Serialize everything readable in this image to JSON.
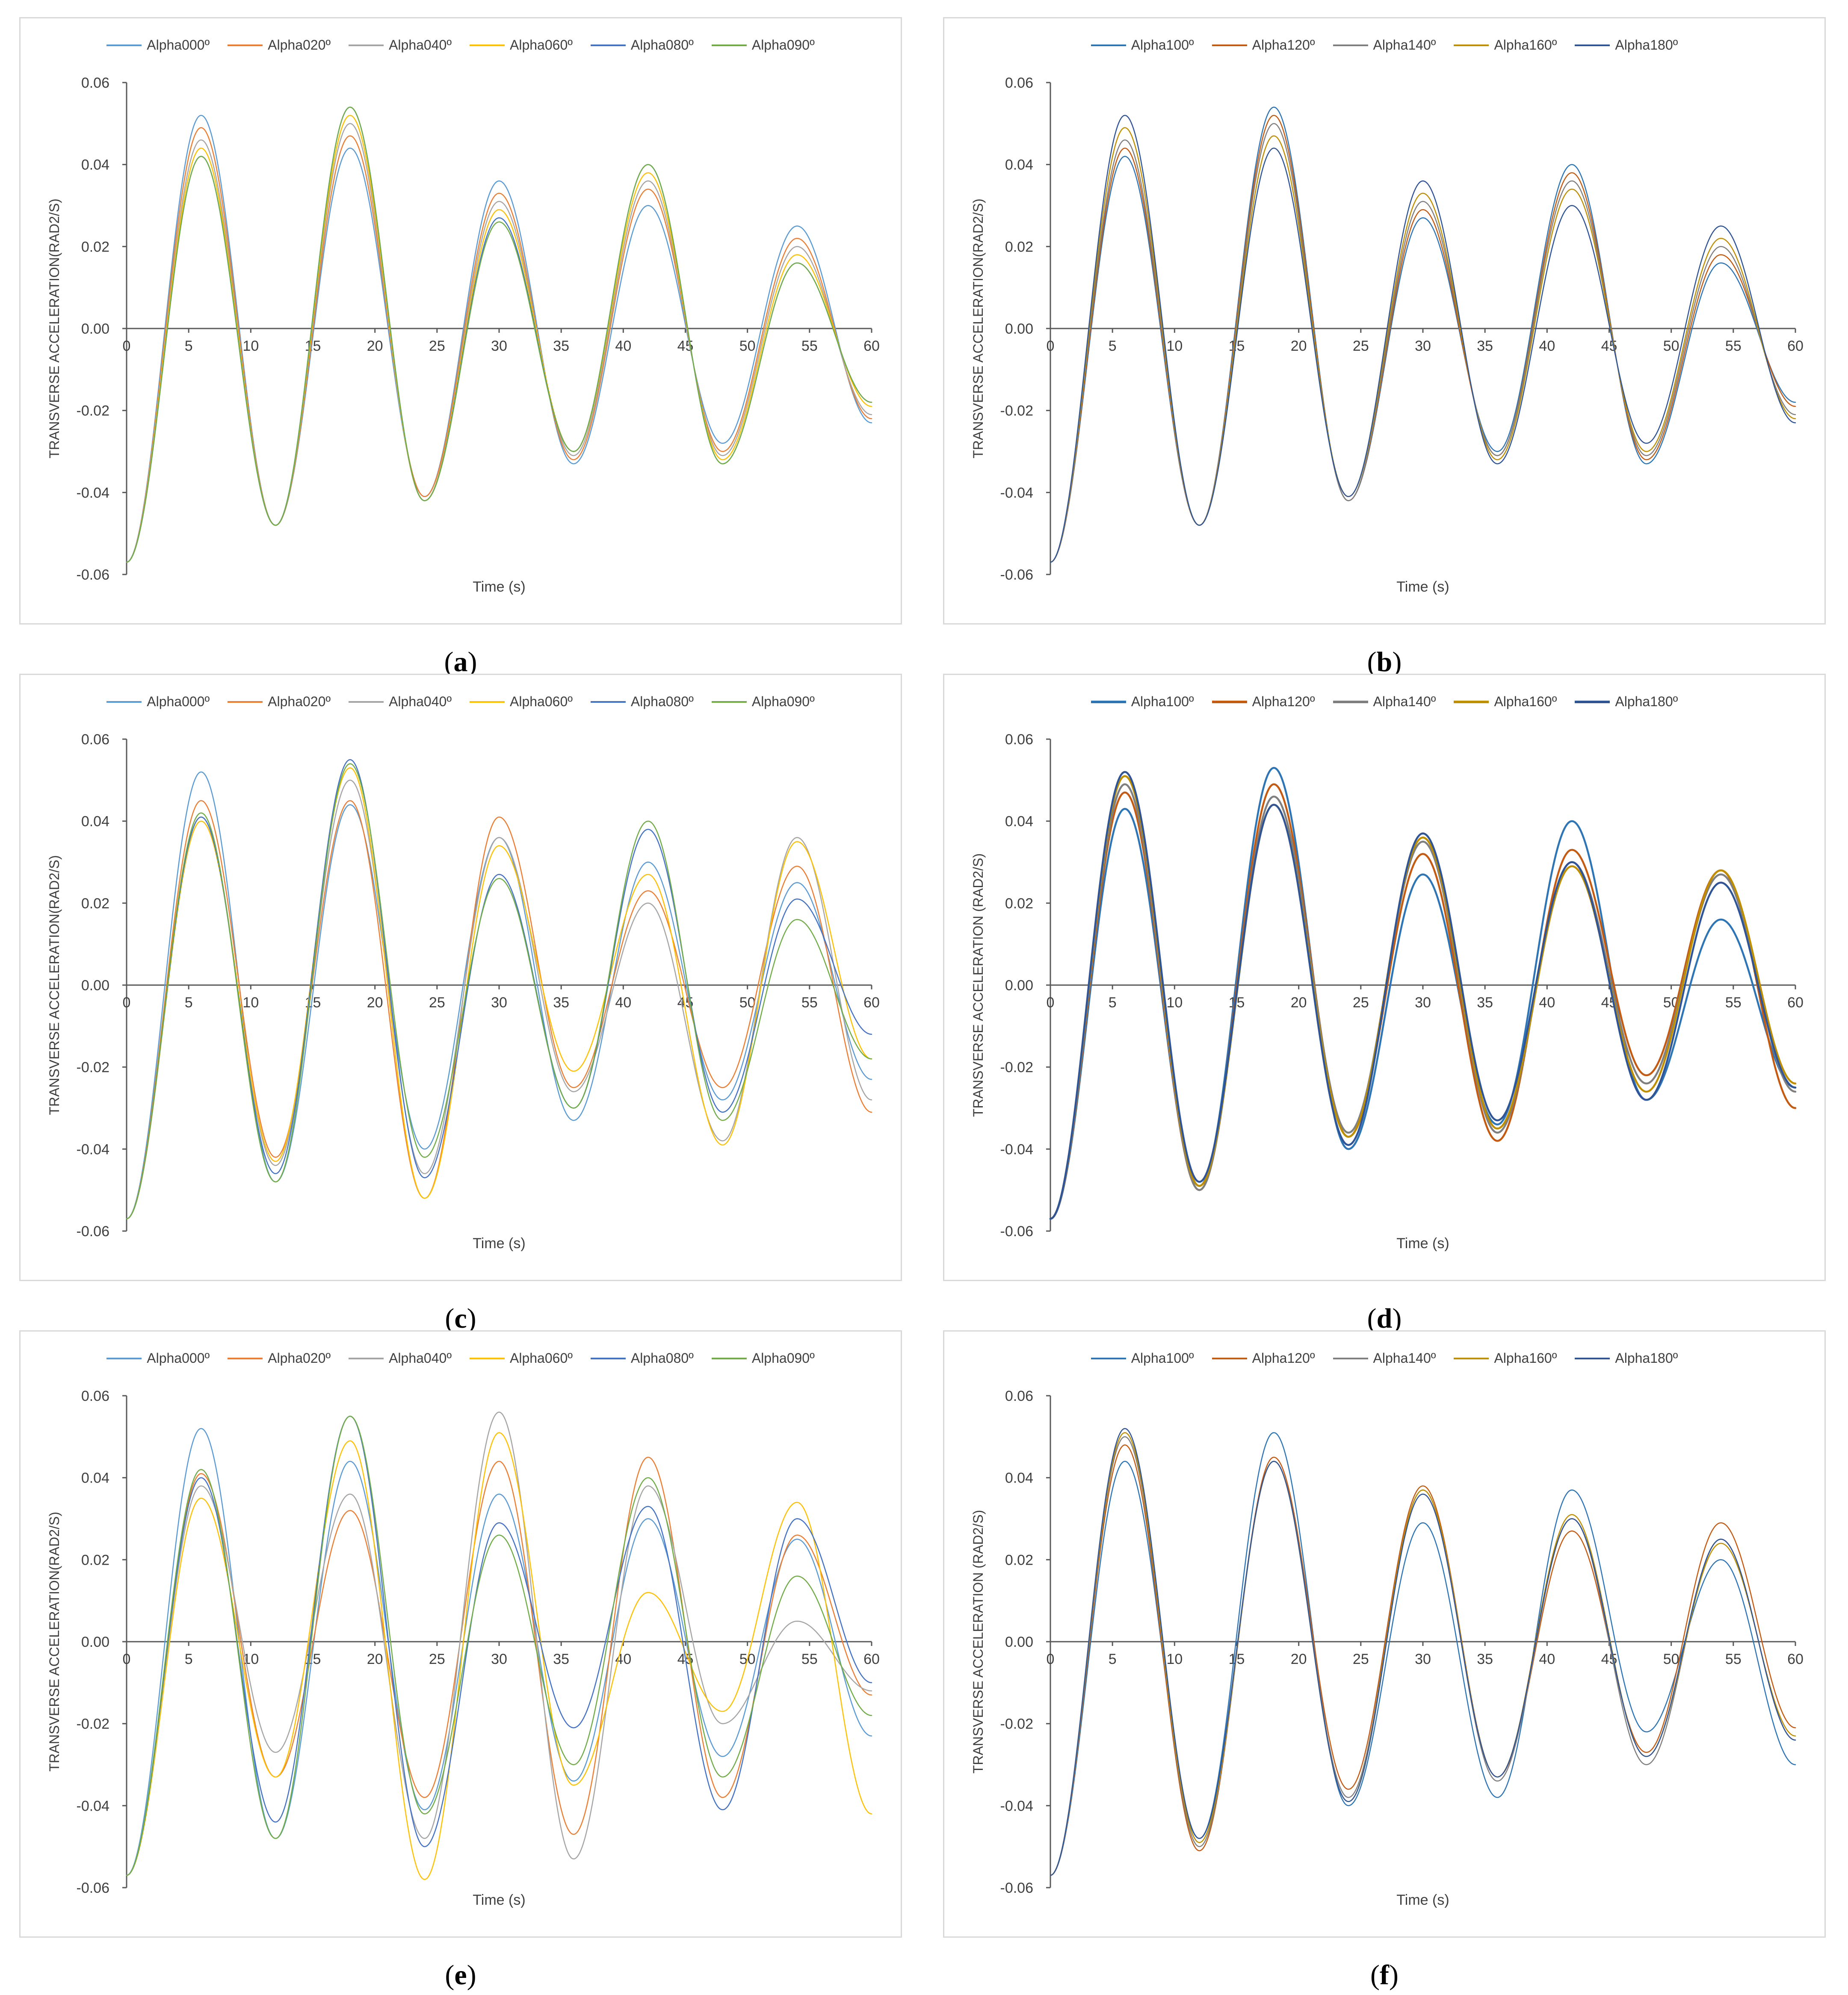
{
  "chart_data": [
    {
      "panel": "a",
      "type": "line",
      "caption_open": "(",
      "caption_label": "a",
      "caption_close": ")",
      "xlabel": "Time (s)",
      "ylabel": "TRANSVERSE ACCELERATION(RAD2/S)",
      "xlim": [
        0,
        60
      ],
      "ylim": [
        -0.06,
        0.06
      ],
      "x_ticks": [
        "0",
        "5",
        "10",
        "15",
        "20",
        "25",
        "30",
        "35",
        "40",
        "45",
        "50",
        "55",
        "60"
      ],
      "y_ticks": [
        "-0.06",
        "-0.04",
        "-0.02",
        "0.00",
        "0.02",
        "0.04",
        "0.06"
      ],
      "legend_position": "top",
      "grid": false,
      "x": [
        0,
        6,
        12,
        18,
        24,
        30,
        36,
        42,
        48,
        54,
        60
      ],
      "series": [
        {
          "name": "Alpha000º",
          "color": "#5B9BD5",
          "width": 2.5,
          "values": [
            -0.057,
            0.052,
            -0.048,
            0.044,
            -0.041,
            0.036,
            -0.033,
            0.03,
            -0.028,
            0.025,
            -0.023
          ]
        },
        {
          "name": "Alpha020º",
          "color": "#ED7D31",
          "width": 2.5,
          "values": [
            -0.057,
            0.049,
            -0.048,
            0.047,
            -0.041,
            0.033,
            -0.032,
            0.034,
            -0.03,
            0.022,
            -0.022
          ]
        },
        {
          "name": "Alpha040º",
          "color": "#A5A5A5",
          "width": 2.5,
          "values": [
            -0.057,
            0.046,
            -0.048,
            0.05,
            -0.042,
            0.031,
            -0.031,
            0.036,
            -0.031,
            0.02,
            -0.021
          ]
        },
        {
          "name": "Alpha060º",
          "color": "#FFC000",
          "width": 2.5,
          "values": [
            -0.057,
            0.044,
            -0.048,
            0.052,
            -0.042,
            0.029,
            -0.03,
            0.038,
            -0.032,
            0.018,
            -0.019
          ]
        },
        {
          "name": "Alpha080º",
          "color": "#4472C4",
          "width": 2.5,
          "values": [
            -0.057,
            0.042,
            -0.048,
            0.054,
            -0.042,
            0.027,
            -0.03,
            0.04,
            -0.033,
            0.016,
            -0.018
          ]
        },
        {
          "name": "Alpha090º",
          "color": "#70AD47",
          "width": 2.5,
          "values": [
            -0.057,
            0.042,
            -0.048,
            0.054,
            -0.042,
            0.026,
            -0.03,
            0.04,
            -0.033,
            0.016,
            -0.018
          ]
        }
      ]
    },
    {
      "panel": "b",
      "type": "line",
      "caption_open": "(",
      "caption_label": "b",
      "caption_close": ")",
      "xlabel": "Time (s)",
      "ylabel": "TRANSVERSE ACCELERATION(RAD2/S)",
      "xlim": [
        0,
        60
      ],
      "ylim": [
        -0.06,
        0.06
      ],
      "x_ticks": [
        "0",
        "5",
        "10",
        "15",
        "20",
        "25",
        "30",
        "35",
        "40",
        "45",
        "50",
        "55",
        "60"
      ],
      "y_ticks": [
        "-0.06",
        "-0.04",
        "-0.02",
        "0.00",
        "0.02",
        "0.04",
        "0.06"
      ],
      "legend_position": "top",
      "grid": false,
      "x": [
        0,
        6,
        12,
        18,
        24,
        30,
        36,
        42,
        48,
        54,
        60
      ],
      "series": [
        {
          "name": "Alpha100º",
          "color": "#2E75B6",
          "width": 2.5,
          "values": [
            -0.057,
            0.042,
            -0.048,
            0.054,
            -0.042,
            0.027,
            -0.03,
            0.04,
            -0.033,
            0.016,
            -0.018
          ]
        },
        {
          "name": "Alpha120º",
          "color": "#C55A11",
          "width": 2.5,
          "values": [
            -0.057,
            0.044,
            -0.048,
            0.052,
            -0.042,
            0.029,
            -0.031,
            0.038,
            -0.032,
            0.018,
            -0.019
          ]
        },
        {
          "name": "Alpha140º",
          "color": "#7F7F7F",
          "width": 2.5,
          "values": [
            -0.057,
            0.046,
            -0.048,
            0.05,
            -0.042,
            0.031,
            -0.031,
            0.036,
            -0.031,
            0.02,
            -0.021
          ]
        },
        {
          "name": "Alpha160º",
          "color": "#BF8F00",
          "width": 2.5,
          "values": [
            -0.057,
            0.049,
            -0.048,
            0.047,
            -0.041,
            0.033,
            -0.032,
            0.034,
            -0.03,
            0.022,
            -0.022
          ]
        },
        {
          "name": "Alpha180º",
          "color": "#2F5597",
          "width": 2.5,
          "values": [
            -0.057,
            0.052,
            -0.048,
            0.044,
            -0.041,
            0.036,
            -0.033,
            0.03,
            -0.028,
            0.025,
            -0.023
          ]
        }
      ]
    },
    {
      "panel": "c",
      "type": "line",
      "caption_open": "(",
      "caption_label": "c",
      "caption_close": ")",
      "xlabel": "Time (s)",
      "ylabel": "TRANSVERSE ACCELERATION(RAD2/S)",
      "xlim": [
        0,
        60
      ],
      "ylim": [
        -0.06,
        0.06
      ],
      "x_ticks": [
        "0",
        "5",
        "10",
        "15",
        "20",
        "25",
        "30",
        "35",
        "40",
        "45",
        "50",
        "55",
        "60"
      ],
      "y_ticks": [
        "-0.06",
        "-0.04",
        "-0.02",
        "0.00",
        "0.02",
        "0.04",
        "0.06"
      ],
      "legend_position": "top",
      "grid": false,
      "x": [
        0,
        6,
        12,
        18,
        24,
        30,
        36,
        42,
        48,
        54,
        60
      ],
      "series": [
        {
          "name": "Alpha000º",
          "color": "#5B9BD5",
          "width": 2.5,
          "values": [
            -0.057,
            0.052,
            -0.048,
            0.044,
            -0.04,
            0.036,
            -0.033,
            0.03,
            -0.028,
            0.025,
            -0.023
          ]
        },
        {
          "name": "Alpha020º",
          "color": "#ED7D31",
          "width": 2.5,
          "values": [
            -0.057,
            0.045,
            -0.042,
            0.045,
            -0.052,
            0.041,
            -0.025,
            0.023,
            -0.025,
            0.029,
            -0.031
          ]
        },
        {
          "name": "Alpha040º",
          "color": "#A5A5A5",
          "width": 2.5,
          "values": [
            -0.057,
            0.041,
            -0.044,
            0.05,
            -0.046,
            0.036,
            -0.026,
            0.02,
            -0.038,
            0.036,
            -0.028
          ]
        },
        {
          "name": "Alpha060º",
          "color": "#FFC000",
          "width": 2.5,
          "values": [
            -0.057,
            0.04,
            -0.043,
            0.053,
            -0.052,
            0.034,
            -0.021,
            0.027,
            -0.039,
            0.035,
            -0.018
          ]
        },
        {
          "name": "Alpha080º",
          "color": "#4472C4",
          "width": 2.5,
          "values": [
            -0.057,
            0.041,
            -0.046,
            0.055,
            -0.047,
            0.027,
            -0.03,
            0.038,
            -0.031,
            0.021,
            -0.012
          ]
        },
        {
          "name": "Alpha090º",
          "color": "#70AD47",
          "width": 2.5,
          "values": [
            -0.057,
            0.042,
            -0.048,
            0.054,
            -0.042,
            0.026,
            -0.03,
            0.04,
            -0.033,
            0.016,
            -0.018
          ]
        }
      ]
    },
    {
      "panel": "d",
      "type": "line",
      "caption_open": "(",
      "caption_label": "d",
      "caption_close": ")",
      "xlabel": "Time (s)",
      "ylabel": "TRANSVERSE ACCELERATION (RAD2/S)",
      "xlim": [
        0,
        60
      ],
      "ylim": [
        -0.06,
        0.06
      ],
      "x_ticks": [
        "0",
        "5",
        "10",
        "15",
        "20",
        "25",
        "30",
        "35",
        "40",
        "45",
        "50",
        "55",
        "60"
      ],
      "y_ticks": [
        "-0.06",
        "-0.04",
        "-0.02",
        "0.00",
        "0.02",
        "0.04",
        "0.06"
      ],
      "legend_position": "top",
      "grid": false,
      "x": [
        0,
        6,
        12,
        18,
        24,
        30,
        36,
        42,
        48,
        54,
        60
      ],
      "series": [
        {
          "name": "Alpha100º",
          "color": "#2E75B6",
          "width": 4.5,
          "values": [
            -0.057,
            0.043,
            -0.049,
            0.053,
            -0.04,
            0.027,
            -0.034,
            0.04,
            -0.028,
            0.016,
            -0.025
          ]
        },
        {
          "name": "Alpha120º",
          "color": "#C55A11",
          "width": 4.5,
          "values": [
            -0.057,
            0.047,
            -0.05,
            0.049,
            -0.037,
            0.032,
            -0.038,
            0.033,
            -0.022,
            0.028,
            -0.03
          ]
        },
        {
          "name": "Alpha140º",
          "color": "#7F7F7F",
          "width": 4.5,
          "values": [
            -0.057,
            0.049,
            -0.05,
            0.046,
            -0.036,
            0.035,
            -0.036,
            0.03,
            -0.024,
            0.027,
            -0.026
          ]
        },
        {
          "name": "Alpha160º",
          "color": "#BF8F00",
          "width": 4.5,
          "values": [
            -0.057,
            0.051,
            -0.049,
            0.044,
            -0.037,
            0.036,
            -0.035,
            0.029,
            -0.026,
            0.028,
            -0.024
          ]
        },
        {
          "name": "Alpha180º",
          "color": "#2F5597",
          "width": 4.5,
          "values": [
            -0.057,
            0.052,
            -0.048,
            0.044,
            -0.039,
            0.037,
            -0.033,
            0.03,
            -0.028,
            0.025,
            -0.025
          ]
        }
      ]
    },
    {
      "panel": "e",
      "type": "line",
      "caption_open": "(",
      "caption_label": "e",
      "caption_close": ")",
      "xlabel": "Time (s)",
      "ylabel": "TRANSVERSE ACCELERATION(RAD2/S)",
      "xlim": [
        0,
        60
      ],
      "ylim": [
        -0.06,
        0.06
      ],
      "x_ticks": [
        "0",
        "5",
        "10",
        "15",
        "20",
        "25",
        "30",
        "35",
        "40",
        "45",
        "50",
        "55",
        "60"
      ],
      "y_ticks": [
        "-0.06",
        "-0.04",
        "-0.02",
        "0.00",
        "0.02",
        "0.04",
        "0.06"
      ],
      "legend_position": "top",
      "grid": false,
      "x": [
        0,
        6,
        12,
        18,
        24,
        30,
        36,
        42,
        48,
        54,
        60
      ],
      "series": [
        {
          "name": "Alpha000º",
          "color": "#5B9BD5",
          "width": 2.5,
          "values": [
            -0.057,
            0.052,
            -0.048,
            0.044,
            -0.041,
            0.036,
            -0.034,
            0.03,
            -0.028,
            0.025,
            -0.023
          ]
        },
        {
          "name": "Alpha020º",
          "color": "#ED7D31",
          "width": 2.5,
          "values": [
            -0.057,
            0.041,
            -0.033,
            0.032,
            -0.038,
            0.044,
            -0.047,
            0.045,
            -0.038,
            0.026,
            -0.013
          ]
        },
        {
          "name": "Alpha040º",
          "color": "#A5A5A5",
          "width": 2.5,
          "values": [
            -0.057,
            0.038,
            -0.027,
            0.036,
            -0.048,
            0.056,
            -0.053,
            0.038,
            -0.02,
            0.005,
            -0.012
          ]
        },
        {
          "name": "Alpha060º",
          "color": "#FFC000",
          "width": 2.5,
          "values": [
            -0.057,
            0.035,
            -0.033,
            0.049,
            -0.058,
            0.051,
            -0.035,
            0.012,
            -0.017,
            0.034,
            -0.042
          ]
        },
        {
          "name": "Alpha080º",
          "color": "#4472C4",
          "width": 2.5,
          "values": [
            -0.057,
            0.04,
            -0.044,
            0.055,
            -0.05,
            0.029,
            -0.021,
            0.033,
            -0.041,
            0.03,
            -0.01
          ]
        },
        {
          "name": "Alpha090º",
          "color": "#70AD47",
          "width": 2.5,
          "values": [
            -0.057,
            0.042,
            -0.048,
            0.055,
            -0.042,
            0.026,
            -0.03,
            0.04,
            -0.033,
            0.016,
            -0.018
          ]
        }
      ]
    },
    {
      "panel": "f",
      "type": "line",
      "caption_open": "(",
      "caption_label": "f",
      "caption_close": ")",
      "xlabel": "Time (s)",
      "ylabel": "TRANSVERSE ACCELERATION (RAD2/S)",
      "xlim": [
        0,
        60
      ],
      "ylim": [
        -0.06,
        0.06
      ],
      "x_ticks": [
        "0",
        "5",
        "10",
        "15",
        "20",
        "25",
        "30",
        "35",
        "40",
        "45",
        "50",
        "55",
        "60"
      ],
      "y_ticks": [
        "-0.06",
        "-0.04",
        "-0.02",
        "0.00",
        "0.02",
        "0.04",
        "0.06"
      ],
      "legend_position": "top",
      "grid": false,
      "x": [
        0,
        6,
        12,
        18,
        24,
        30,
        36,
        42,
        48,
        54,
        60
      ],
      "series": [
        {
          "name": "Alpha100º",
          "color": "#2E75B6",
          "width": 2.5,
          "values": [
            -0.057,
            0.044,
            -0.048,
            0.051,
            -0.04,
            0.029,
            -0.038,
            0.037,
            -0.022,
            0.02,
            -0.03
          ]
        },
        {
          "name": "Alpha120º",
          "color": "#C55A11",
          "width": 2.5,
          "values": [
            -0.057,
            0.048,
            -0.051,
            0.045,
            -0.036,
            0.038,
            -0.033,
            0.027,
            -0.027,
            0.029,
            -0.021
          ]
        },
        {
          "name": "Alpha140º",
          "color": "#7F7F7F",
          "width": 2.5,
          "values": [
            -0.057,
            0.05,
            -0.05,
            0.044,
            -0.038,
            0.037,
            -0.034,
            0.03,
            -0.03,
            0.025,
            -0.024
          ]
        },
        {
          "name": "Alpha160º",
          "color": "#BF8F00",
          "width": 2.5,
          "values": [
            -0.057,
            0.051,
            -0.049,
            0.044,
            -0.039,
            0.037,
            -0.033,
            0.031,
            -0.028,
            0.024,
            -0.023
          ]
        },
        {
          "name": "Alpha180º",
          "color": "#2F5597",
          "width": 2.5,
          "values": [
            -0.057,
            0.052,
            -0.048,
            0.044,
            -0.039,
            0.036,
            -0.033,
            0.03,
            -0.028,
            0.025,
            -0.024
          ]
        }
      ]
    }
  ]
}
